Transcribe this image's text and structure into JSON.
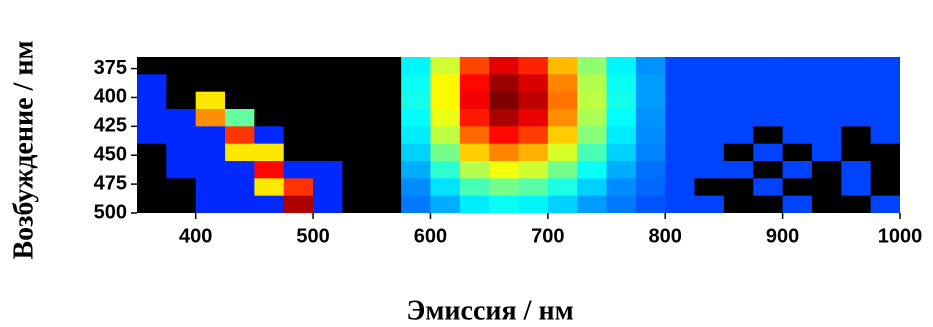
{
  "chart_data": {
    "type": "heatmap",
    "colormap": "jet",
    "xlabel": "Эмиссия / нм",
    "ylabel": "Возбуждение / нм",
    "xlim": [
      350,
      1000
    ],
    "xticks": [
      400,
      500,
      600,
      700,
      800,
      900,
      1000
    ],
    "ylim": [
      500,
      365
    ],
    "yticks": [
      375,
      400,
      425,
      450,
      475,
      500
    ],
    "zlim": [
      0,
      100
    ],
    "x": [
      362.5,
      387.5,
      412.5,
      437.5,
      462.5,
      487.5,
      512.5,
      537.5,
      562.5,
      587.5,
      612.5,
      637.5,
      662.5,
      687.5,
      712.5,
      737.5,
      762.5,
      787.5,
      812.5,
      837.5,
      862.5,
      887.5,
      912.5,
      937.5,
      962.5,
      987.5
    ],
    "y": [
      372.5,
      387.5,
      402.5,
      417.5,
      432.5,
      447.5,
      462.5,
      477.5,
      492.5
    ],
    "values": [
      [
        0,
        0,
        0,
        0,
        0,
        0,
        0,
        0,
        0,
        28,
        52,
        78,
        89,
        82,
        65,
        45,
        28,
        17,
        8,
        8,
        8,
        8,
        8,
        8,
        8,
        8
      ],
      [
        5,
        0,
        0,
        0,
        0,
        0,
        0,
        0,
        0,
        30,
        58,
        85,
        97,
        90,
        71,
        49,
        30,
        18,
        8,
        8,
        8,
        8,
        8,
        8,
        8,
        8
      ],
      [
        5,
        0,
        60,
        0,
        0,
        0,
        0,
        0,
        0,
        31,
        58,
        87,
        100,
        93,
        73,
        50,
        31,
        18,
        8,
        8,
        8,
        8,
        8,
        8,
        8,
        8
      ],
      [
        5,
        5,
        70,
        40,
        0,
        0,
        0,
        0,
        0,
        29,
        55,
        83,
        95,
        88,
        70,
        48,
        29,
        17,
        8,
        8,
        8,
        8,
        8,
        8,
        8,
        8
      ],
      [
        5,
        5,
        5,
        80,
        5,
        0,
        0,
        0,
        0,
        27,
        50,
        74,
        85,
        79,
        63,
        44,
        27,
        16,
        8,
        8,
        8,
        0,
        8,
        8,
        0,
        8
      ],
      [
        0,
        5,
        5,
        60,
        60,
        0,
        0,
        0,
        0,
        24,
        42,
        63,
        71,
        66,
        53,
        37,
        24,
        15,
        8,
        8,
        0,
        8,
        0,
        8,
        0,
        0
      ],
      [
        0,
        5,
        5,
        5,
        85,
        5,
        5,
        0,
        0,
        20,
        34,
        49,
        56,
        52,
        42,
        30,
        20,
        13,
        8,
        8,
        8,
        0,
        8,
        0,
        8,
        0
      ],
      [
        0,
        0,
        5,
        5,
        60,
        80,
        5,
        0,
        0,
        16,
        26,
        37,
        42,
        39,
        32,
        24,
        16,
        12,
        8,
        0,
        0,
        8,
        0,
        0,
        8,
        0
      ],
      [
        0,
        0,
        5,
        5,
        5,
        95,
        5,
        0,
        0,
        14,
        20,
        27,
        30,
        28,
        24,
        18,
        14,
        10,
        8,
        8,
        0,
        0,
        8,
        0,
        0,
        8
      ]
    ]
  }
}
